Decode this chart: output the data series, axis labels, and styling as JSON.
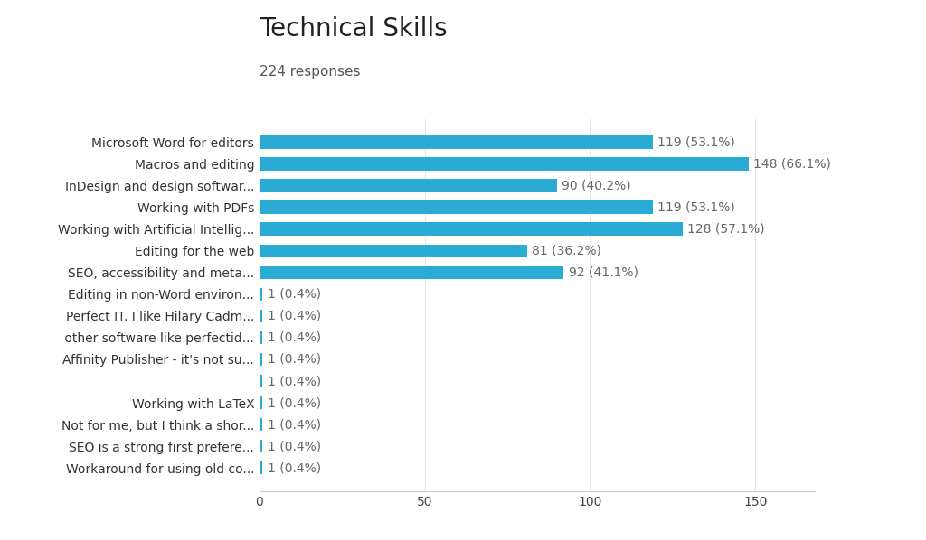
{
  "title": "Technical Skills",
  "subtitle": "224 responses",
  "categories": [
    "Microsoft Word for editors",
    "Macros and editing",
    "InDesign and design softwar...",
    "Working with PDFs",
    "Working with Artificial Intellig...",
    "Editing for the web",
    "SEO, accessibility and meta...",
    "Editing in non-Word environ...",
    "Perfect IT. I like Hilary Cadm...",
    " other software like perfectid...",
    "Affinity Publisher - it's not su...",
    "",
    "Working with LaTeX",
    "Not for me, but I think a shor...",
    "SEO is a strong first prefere...",
    "Workaround for using old co..."
  ],
  "values": [
    119,
    148,
    90,
    119,
    128,
    81,
    92,
    1,
    1,
    1,
    1,
    1,
    1,
    1,
    1,
    1
  ],
  "labels": [
    "119 (53.1%)",
    "148 (66.1%)",
    "90 (40.2%)",
    "119 (53.1%)",
    "128 (57.1%)",
    "81 (36.2%)",
    "92 (41.1%)",
    "1 (0.4%)",
    "1 (0.4%)",
    "1 (0.4%)",
    "1 (0.4%)",
    "1 (0.4%)",
    "1 (0.4%)",
    "1 (0.4%)",
    "1 (0.4%)",
    "1 (0.4%)"
  ],
  "bar_color": "#29ABD4",
  "background_color": "#FFFFFF",
  "title_fontsize": 20,
  "subtitle_fontsize": 11,
  "label_fontsize": 10,
  "tick_fontsize": 10,
  "xlim": [
    0,
    168
  ],
  "xticks": [
    0,
    50,
    100,
    150
  ]
}
